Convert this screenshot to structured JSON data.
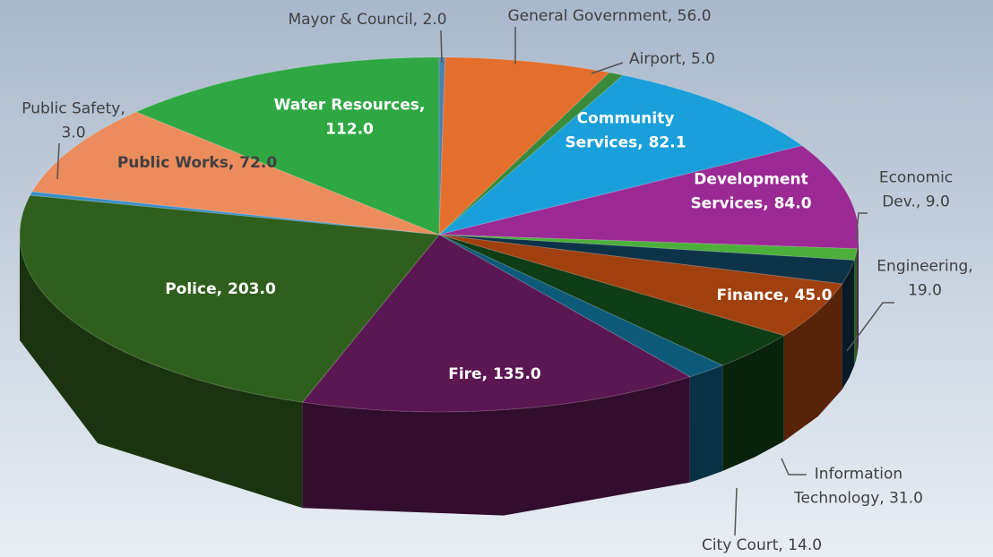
{
  "chart_data": {
    "type": "pie",
    "three_d": true,
    "values": [
      2.0,
      56.0,
      5.0,
      82.1,
      84.0,
      9.0,
      19.0,
      45.0,
      31.0,
      14.0,
      135.0,
      203.0,
      3.0,
      72.0,
      112.0
    ],
    "value_labels": [
      "Mayor & Council, 2.0",
      "General Government, 56.0",
      "Airport, 5.0",
      "Community\nServices, 82.1",
      "Development\nServices, 84.0",
      "Economic\nDev., 9.0",
      "Engineering,\n19.0",
      "Finance, 45.0",
      "Information\nTechnology, 31.0",
      "City Court, 14.0",
      "Fire, 135.0",
      "Police, 203.0",
      "Public Safety,\n3.0",
      "Public Works, 72.0",
      "Water Resources,\n112.0"
    ],
    "colors": [
      "#4a7fb0",
      "#e46f2c",
      "#3a8a3a",
      "#19a0da",
      "#9b2a94",
      "#4caf3a",
      "#0d3349",
      "#a0400e",
      "#0f3d16",
      "#0e5a7a",
      "#5b1752",
      "#2f5f1c",
      "#3a8fc8",
      "#ec8c5c",
      "#2fa844"
    ]
  }
}
